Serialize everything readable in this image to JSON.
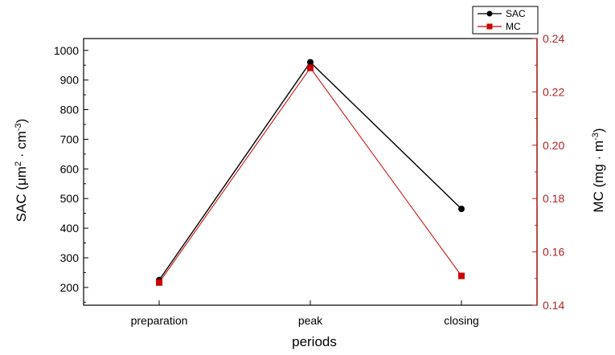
{
  "chart_data": {
    "type": "line",
    "title": "",
    "categories": [
      "preparation",
      "peak",
      "closing"
    ],
    "xlabel": "periods",
    "y_left": {
      "label": "SAC (μm",
      "label_sup1": "2",
      "label_mid": " · cm",
      "label_sup2": "-3",
      "label_end": ")",
      "range": [
        140,
        1040
      ],
      "ticks": [
        "200",
        "300",
        "400",
        "500",
        "600",
        "700",
        "800",
        "900",
        "1000"
      ],
      "color": "#000000"
    },
    "y_right": {
      "label": "MC (mg · m",
      "label_sup": "-3",
      "label_end": ")",
      "range": [
        0.14,
        0.24
      ],
      "ticks": [
        "0.14",
        "0.16",
        "0.18",
        "0.20",
        "0.22",
        "0.24"
      ],
      "color": "#b22222"
    },
    "series": [
      {
        "name": "SAC",
        "axis": "left",
        "values": [
          225,
          960,
          465
        ],
        "color": "#000000",
        "marker": "circle"
      },
      {
        "name": "MC",
        "axis": "right",
        "values": [
          0.1485,
          0.229,
          0.151
        ],
        "color": "#cc0000",
        "marker": "square"
      }
    ],
    "legend_position": "top-right",
    "grid": false
  }
}
